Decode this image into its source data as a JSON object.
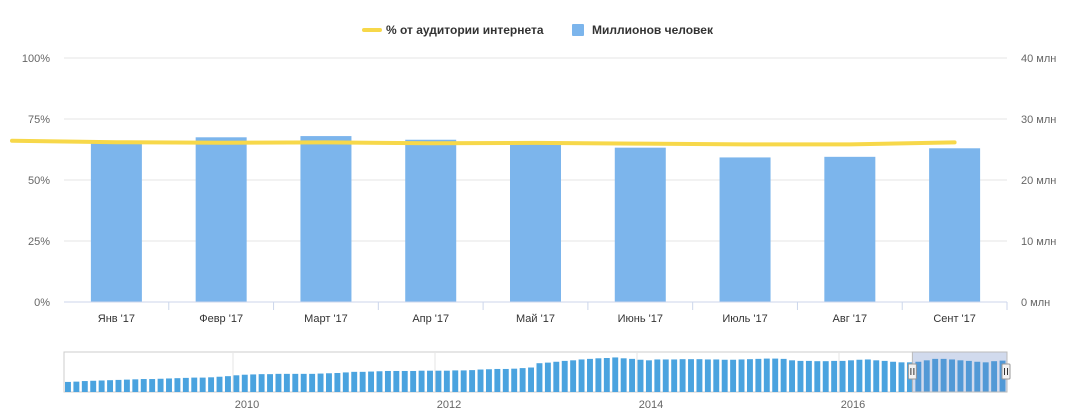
{
  "legend": {
    "line_label": "% от аудитории интернета",
    "bar_label": "Миллионов человек"
  },
  "colors": {
    "line": "#f7d84a",
    "bar": "#7cb5ec",
    "grid": "#e6e6e6",
    "navigator_bar": "#4aa3df"
  },
  "chart_data": {
    "type": "bar",
    "categories": [
      "Янв '17",
      "Февр '17",
      "Март '17",
      "Апр '17",
      "Май '17",
      "Июнь '17",
      "Июль '17",
      "Авг '17",
      "Сент '17"
    ],
    "series": [
      {
        "name": "Миллионов человек",
        "type": "bar",
        "axis": "right",
        "values": [
          26.3,
          27.0,
          27.2,
          26.6,
          26.0,
          25.3,
          23.7,
          23.8,
          25.2
        ]
      },
      {
        "name": "% от аудитории интернета",
        "type": "line",
        "axis": "left",
        "values": [
          65.5,
          65.3,
          65.4,
          65.1,
          65.2,
          64.9,
          64.6,
          64.6,
          65.4
        ]
      }
    ],
    "y_left": {
      "ticks": [
        "0%",
        "25%",
        "50%",
        "75%",
        "100%"
      ],
      "ylim": [
        0,
        100
      ]
    },
    "y_right": {
      "ticks": [
        "0 млн",
        "10 млн",
        "20 млн",
        "30 млн",
        "40 млн"
      ],
      "ylim": [
        0,
        40
      ]
    },
    "grid": true,
    "legend_position": "top-center",
    "navigator": {
      "year_labels": [
        "2010",
        "2012",
        "2014",
        "2016"
      ],
      "values": [
        3.5,
        3.6,
        3.8,
        3.9,
        4.0,
        4.1,
        4.2,
        4.3,
        4.4,
        4.5,
        4.5,
        4.6,
        4.7,
        4.8,
        4.9,
        5.0,
        5.0,
        5.1,
        5.3,
        5.5,
        5.8,
        6.0,
        6.1,
        6.2,
        6.2,
        6.3,
        6.3,
        6.3,
        6.3,
        6.3,
        6.4,
        6.5,
        6.6,
        6.8,
        7.0,
        7.0,
        7.1,
        7.2,
        7.3,
        7.3,
        7.3,
        7.3,
        7.4,
        7.4,
        7.4,
        7.4,
        7.5,
        7.5,
        7.6,
        7.8,
        7.9,
        8.0,
        8.0,
        8.1,
        8.3,
        8.5,
        10.0,
        10.2,
        10.5,
        10.8,
        11.0,
        11.3,
        11.5,
        11.7,
        11.8,
        12.0,
        11.7,
        11.5,
        11.2,
        11.0,
        11.3,
        11.3,
        11.3,
        11.4,
        11.4,
        11.4,
        11.3,
        11.3,
        11.2,
        11.2,
        11.3,
        11.4,
        11.5,
        11.6,
        11.6,
        11.5,
        11.0,
        10.8,
        10.8,
        10.7,
        10.7,
        10.8,
        10.8,
        11.0,
        11.2,
        11.3,
        11.0,
        10.8,
        10.5,
        10.3,
        10.3,
        10.5,
        11.0,
        11.5,
        11.5,
        11.3,
        11.0,
        10.8,
        10.5,
        10.3,
        10.7,
        10.9
      ],
      "selection_start_index": 101
    }
  }
}
